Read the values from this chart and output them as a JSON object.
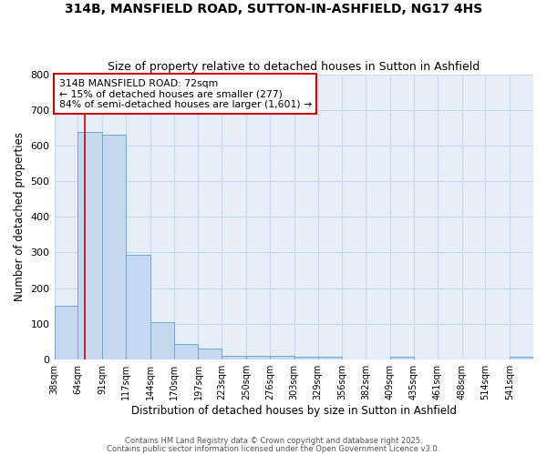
{
  "title1": "314B, MANSFIELD ROAD, SUTTON-IN-ASHFIELD, NG17 4HS",
  "title2": "Size of property relative to detached houses in Sutton in Ashfield",
  "xlabel": "Distribution of detached houses by size in Sutton in Ashfield",
  "ylabel": "Number of detached properties",
  "bar_edges": [
    38,
    64,
    91,
    117,
    144,
    170,
    197,
    223,
    250,
    276,
    303,
    329,
    356,
    382,
    409,
    435,
    461,
    488,
    514,
    541,
    567
  ],
  "bar_heights": [
    150,
    640,
    630,
    293,
    103,
    44,
    29,
    10,
    10,
    10,
    8,
    8,
    0,
    0,
    8,
    0,
    0,
    0,
    0,
    8
  ],
  "bar_color": "#c5d8ef",
  "bar_edge_color": "#6aaad4",
  "vline_x": 72,
  "vline_color": "#cc0000",
  "annotation_text": "314B MANSFIELD ROAD: 72sqm\n← 15% of detached houses are smaller (277)\n84% of semi-detached houses are larger (1,601) →",
  "annotation_box_facecolor": "#ffffff",
  "annotation_box_edgecolor": "#cc0000",
  "ylim": [
    0,
    800
  ],
  "yticks": [
    0,
    100,
    200,
    300,
    400,
    500,
    600,
    700,
    800
  ],
  "grid_color": "#c8d8ec",
  "plot_bg_color": "#e8eef8",
  "fig_bg_color": "#ffffff",
  "footer1": "Contains HM Land Registry data © Crown copyright and database right 2025.",
  "footer2": "Contains public sector information licensed under the Open Government Licence v3.0."
}
